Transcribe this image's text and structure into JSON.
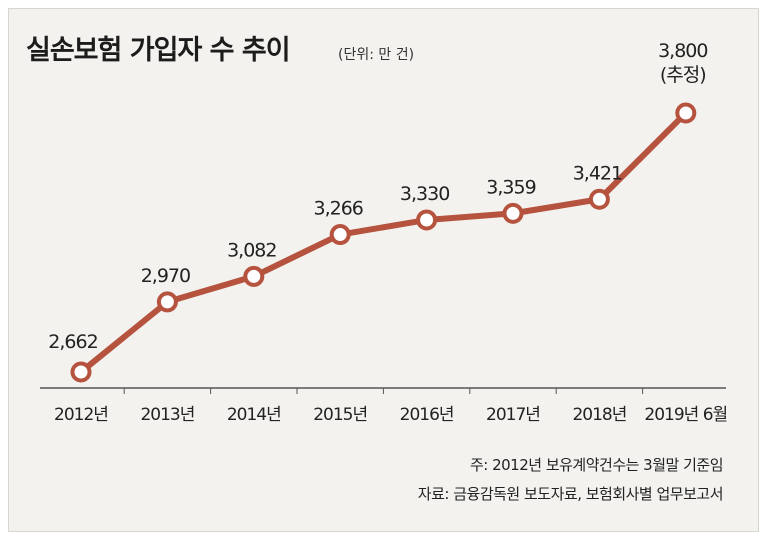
{
  "header": {
    "title": "실손보험 가입자 수 추이",
    "unit": "(단위: 만 건)"
  },
  "notes": {
    "basis": "주: 2012년 보유계약건수는 3월말 기준임",
    "source": "자료: 금융감독원 보도자료, 보험회사별 업무보고서"
  },
  "colors": {
    "line": "#b5533e",
    "marker_fill": "#ffffff",
    "axis": "#555555"
  },
  "chart_data": {
    "type": "line",
    "title": "실손보험 가입자 수 추이",
    "unit": "만 건",
    "categories": [
      "2012년",
      "2013년",
      "2014년",
      "2015년",
      "2016년",
      "2017년",
      "2018년",
      "2019년 6월"
    ],
    "values": [
      2662,
      2970,
      3082,
      3266,
      3330,
      3359,
      3421,
      3800
    ],
    "labels": [
      "2,662",
      "2,970",
      "3,082",
      "3,266",
      "3,330",
      "3,359",
      "3,421",
      "3,800"
    ],
    "estimate_note": "(추정)",
    "ylim": [
      2550,
      3850
    ],
    "grid": false,
    "legend": "none"
  }
}
